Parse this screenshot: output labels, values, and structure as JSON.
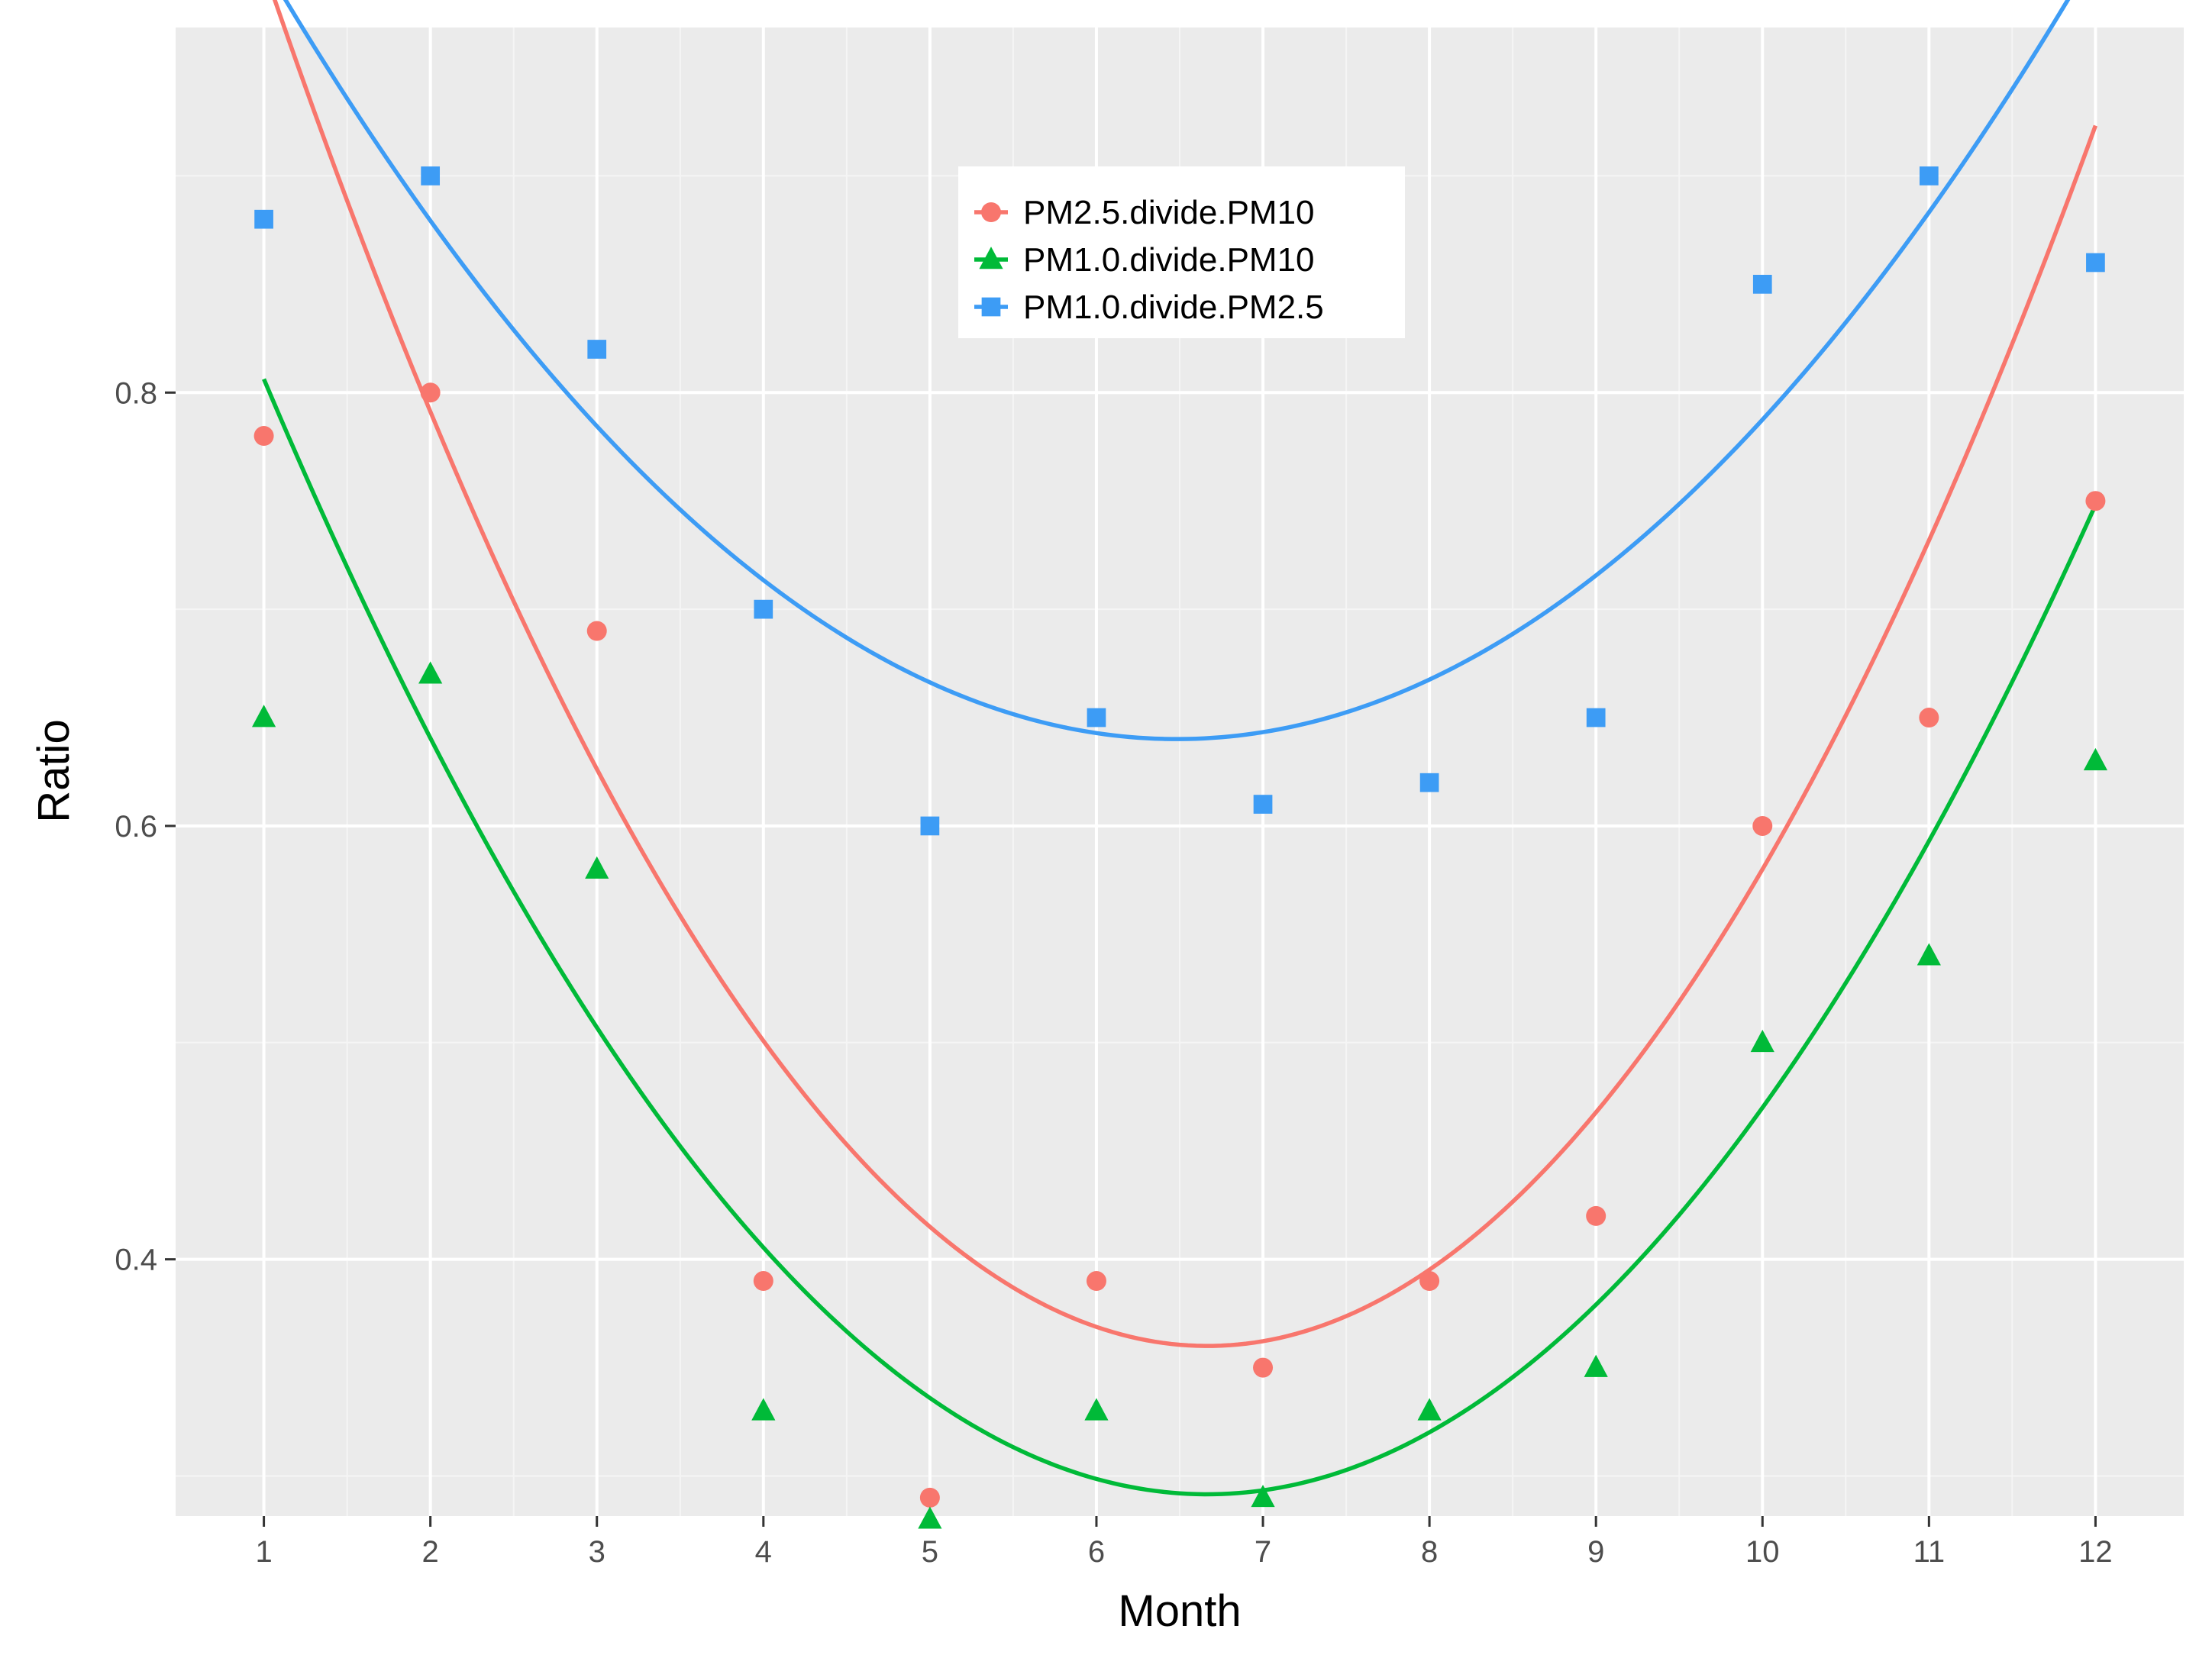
{
  "chart_data": {
    "type": "scatter",
    "title": "",
    "xlabel": "Month",
    "ylabel": "Ratio",
    "xlim": [
      0.47,
      12.53
    ],
    "ylim": [
      0.2815,
      0.9685
    ],
    "x_ticks": [
      1,
      2,
      3,
      4,
      5,
      6,
      7,
      8,
      9,
      10,
      11,
      12
    ],
    "x_tick_labels": [
      "1",
      "2",
      "3",
      "4",
      "5",
      "6",
      "7",
      "8",
      "9",
      "10",
      "11",
      "12"
    ],
    "y_ticks": [
      0.4,
      0.6,
      0.8
    ],
    "y_tick_labels": [
      "0.4",
      "0.6",
      "0.8"
    ],
    "grid": true,
    "background": "#ebebeb",
    "legend": {
      "position": "top-center",
      "inside": true
    },
    "x": [
      1,
      2,
      3,
      4,
      5,
      6,
      7,
      8,
      9,
      10,
      11,
      12
    ],
    "series": [
      {
        "name": "PM2.5.divide.PM10",
        "color": "#f8766d",
        "marker": "circle",
        "values": [
          0.78,
          0.8,
          0.69,
          0.39,
          0.29,
          0.39,
          0.35,
          0.39,
          0.42,
          0.6,
          0.65,
          0.75
        ],
        "fit": {
          "method": "quadratic",
          "coefficients": [
            1.24,
            -0.264,
            0.0198
          ]
        }
      },
      {
        "name": "PM1.0.divide.PM10",
        "color": "#00ba38",
        "marker": "triangle",
        "values": [
          0.65,
          0.67,
          0.58,
          0.33,
          0.28,
          0.33,
          0.29,
          0.33,
          0.35,
          0.5,
          0.54,
          0.63
        ],
        "fit": {
          "method": "quadratic",
          "coefficients": [
            1.004,
            -0.2138,
            0.01604
          ]
        }
      },
      {
        "name": "PM1.0.divide.PM2.5",
        "color": "#3d9cf5",
        "marker": "square",
        "values": [
          0.88,
          0.9,
          0.82,
          0.7,
          0.6,
          0.65,
          0.61,
          0.62,
          0.65,
          0.85,
          0.9,
          0.86
        ],
        "fit": {
          "method": "quadratic",
          "coefficients": [
            1.1405,
            -0.1544,
            0.01191
          ]
        }
      }
    ]
  }
}
